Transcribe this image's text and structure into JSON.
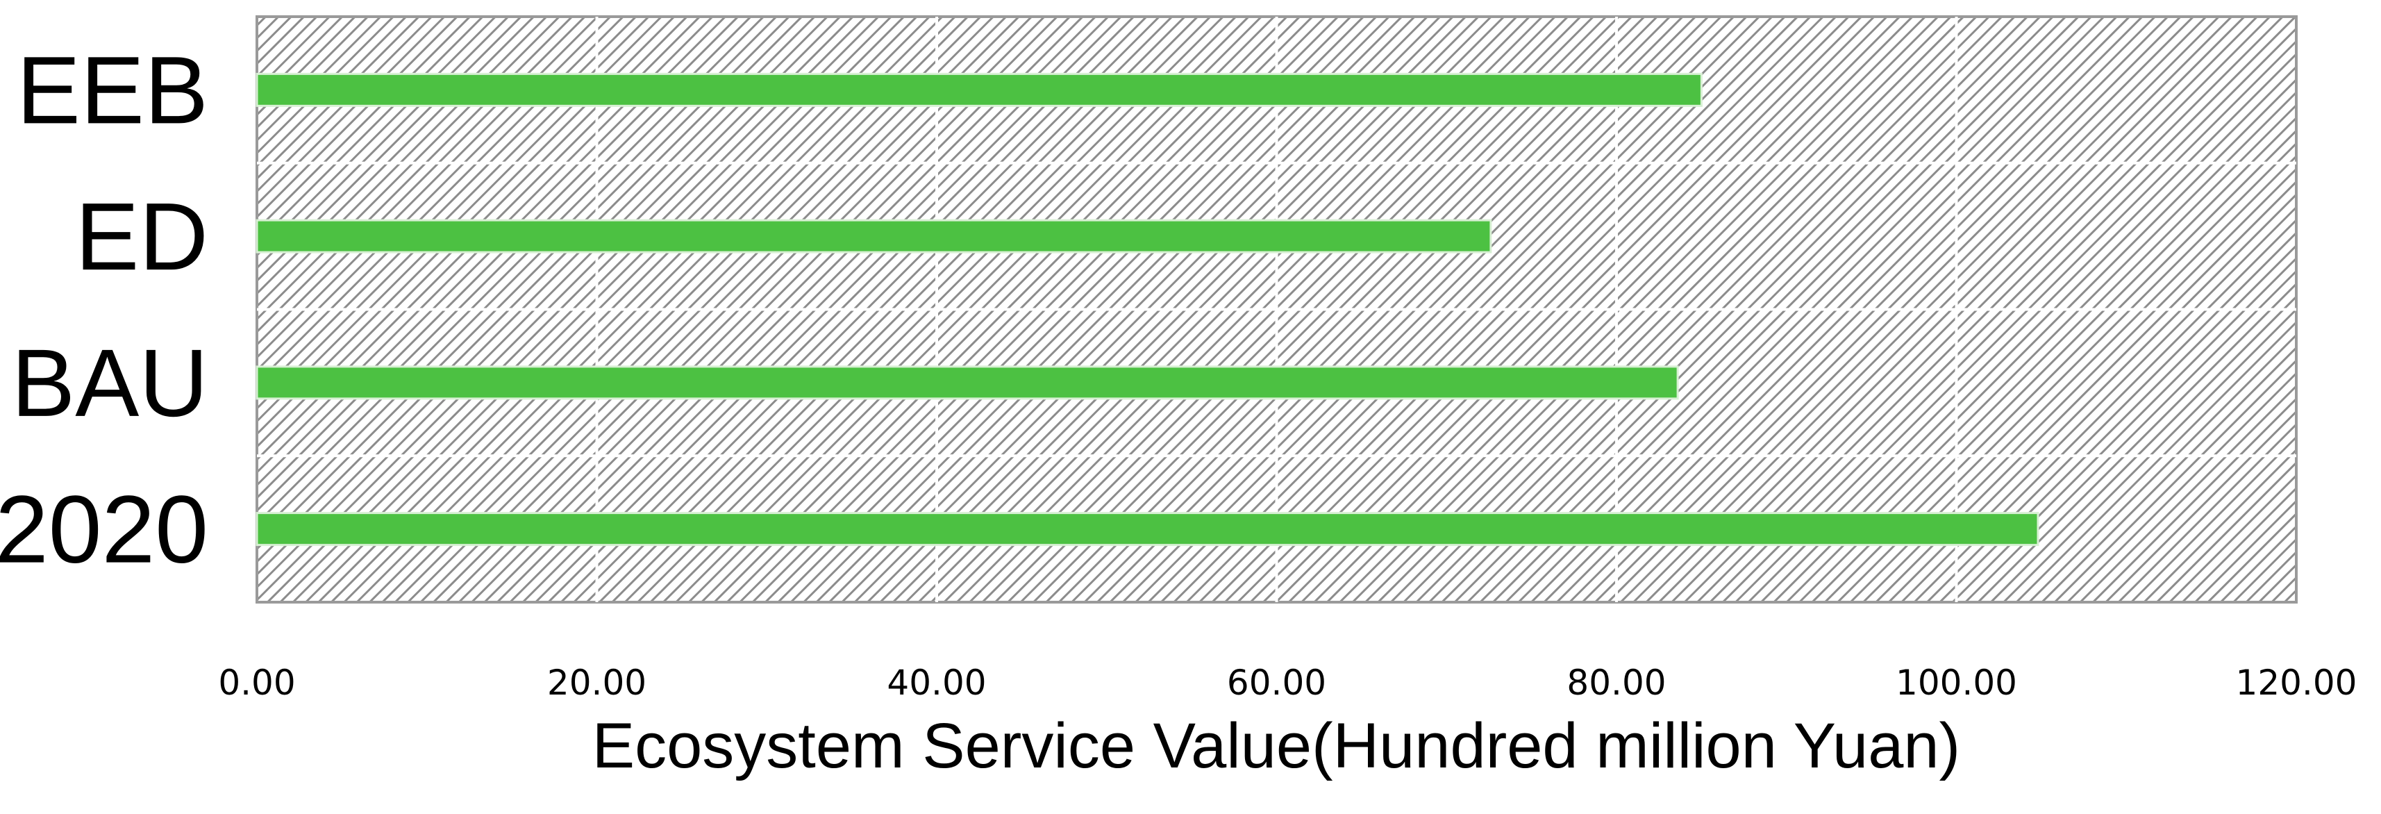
{
  "chart_data": {
    "type": "bar",
    "orientation": "horizontal",
    "categories": [
      "EEB",
      "ED",
      "BAU",
      "2020"
    ],
    "values": [
      85.0,
      72.6,
      83.6,
      104.8
    ],
    "xlabel": "Ecosystem Service Value(Hundred million Yuan)",
    "ylabel": "",
    "title": "",
    "xlim": [
      0,
      120
    ],
    "x_ticks": [
      "0.00",
      "20.00",
      "40.00",
      "60.00",
      "80.00",
      "100.00",
      "120.00"
    ],
    "grid": true,
    "legend": "none",
    "colors": {
      "bar": "#4cc142",
      "plot_hatch": "#8c8c8c",
      "gridline": "#ffffff",
      "frame": "#9a9a9a",
      "text": "#000000"
    }
  }
}
